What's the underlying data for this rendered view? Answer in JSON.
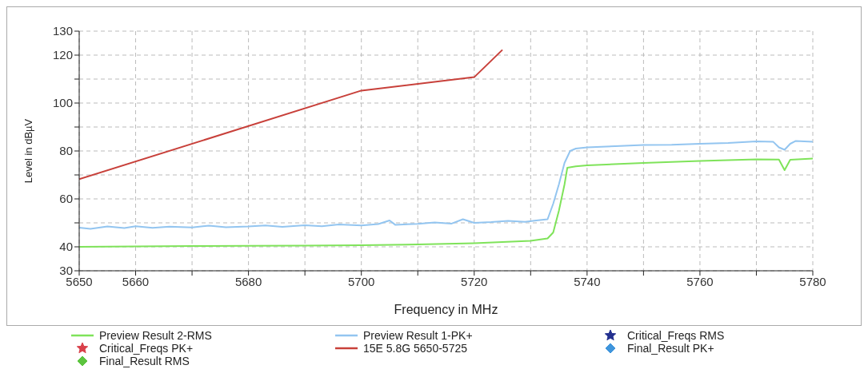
{
  "chart_data": {
    "type": "line",
    "xlabel": "Frequency in MHz",
    "ylabel": "Level in dBµV",
    "xlim": [
      5650,
      5780
    ],
    "ylim": [
      30,
      130
    ],
    "xticks": [
      5650,
      5660,
      {
        "value": 5670,
        "label": null
      },
      5680,
      {
        "value": 5690,
        "label": null
      },
      5700,
      {
        "value": 5710,
        "label": null
      },
      5720,
      {
        "value": 5730,
        "label": null
      },
      5740,
      {
        "value": 5750,
        "label": null
      },
      5760,
      {
        "value": 5770,
        "label": null
      },
      5780
    ],
    "yticks": [
      30,
      40,
      {
        "value": 50,
        "label": null
      },
      60,
      {
        "value": 70,
        "label": null
      },
      80,
      {
        "value": 90,
        "label": null
      },
      100,
      {
        "value": 110,
        "label": null
      },
      120,
      130
    ],
    "grid": true,
    "legend": "bottom",
    "series": [
      {
        "name": "Preview Result 2-RMS",
        "marker": "none",
        "color": "#7fe35a",
        "x": [
          5650,
          5660,
          5670,
          5680,
          5690,
          5700,
          5710,
          5720,
          5730,
          5733,
          5734,
          5735,
          5736,
          5736.5,
          5738,
          5740,
          5750,
          5760,
          5770,
          5774,
          5775,
          5776,
          5780
        ],
        "values": [
          40,
          40.2,
          40.3,
          40.4,
          40.5,
          40.7,
          41,
          41.5,
          42.5,
          43.5,
          46,
          55,
          66,
          73,
          73.6,
          74,
          75,
          75.8,
          76.5,
          76.4,
          72,
          76.3,
          76.8
        ]
      },
      {
        "name": "Preview Result 1-PK+",
        "marker": "none",
        "color": "#93c5f0",
        "x": [
          5650,
          5652,
          5655,
          5658,
          5660,
          5663,
          5666,
          5670,
          5673,
          5676,
          5680,
          5683,
          5686,
          5690,
          5693,
          5696,
          5700,
          5703,
          5705,
          5706,
          5710,
          5713,
          5716,
          5718,
          5720,
          5723,
          5726,
          5729,
          5731,
          5733,
          5734,
          5735,
          5736,
          5737,
          5738,
          5740,
          5745,
          5750,
          5755,
          5760,
          5765,
          5770,
          5773,
          5774,
          5775,
          5776,
          5777,
          5780
        ],
        "values": [
          48,
          47.5,
          48.5,
          47.8,
          48.6,
          47.9,
          48.4,
          48.1,
          48.8,
          48.2,
          48.5,
          48.9,
          48.3,
          49,
          48.6,
          49.3,
          48.9,
          49.5,
          51,
          49.2,
          49.6,
          50.2,
          49.7,
          51.5,
          50,
          50.3,
          50.8,
          50.4,
          51,
          51.5,
          58,
          66,
          75,
          80,
          81,
          81.5,
          82,
          82.5,
          82.6,
          83,
          83.3,
          84,
          83.8,
          81.5,
          80.5,
          83,
          84.2,
          83.8
        ]
      },
      {
        "name": "Critical_Freqs RMS",
        "type": "scatter",
        "marker": "star",
        "color": "#23308f"
      },
      {
        "name": "Critical_Freqs PK+",
        "type": "scatter",
        "marker": "star",
        "color": "#d9404a"
      },
      {
        "name": "15E 5.8G 5650-5725",
        "marker": "none",
        "color": "#c8403a",
        "x": [
          5650,
          5700,
          5720,
          5725
        ],
        "values": [
          68.2,
          105.2,
          110.8,
          122.2
        ]
      },
      {
        "name": "Final_Result PK+",
        "type": "scatter",
        "marker": "diamond",
        "color": "#3f95dc"
      },
      {
        "name": "Final_Result RMS",
        "type": "scatter",
        "marker": "diamond",
        "color": "#5cc43e"
      }
    ]
  }
}
